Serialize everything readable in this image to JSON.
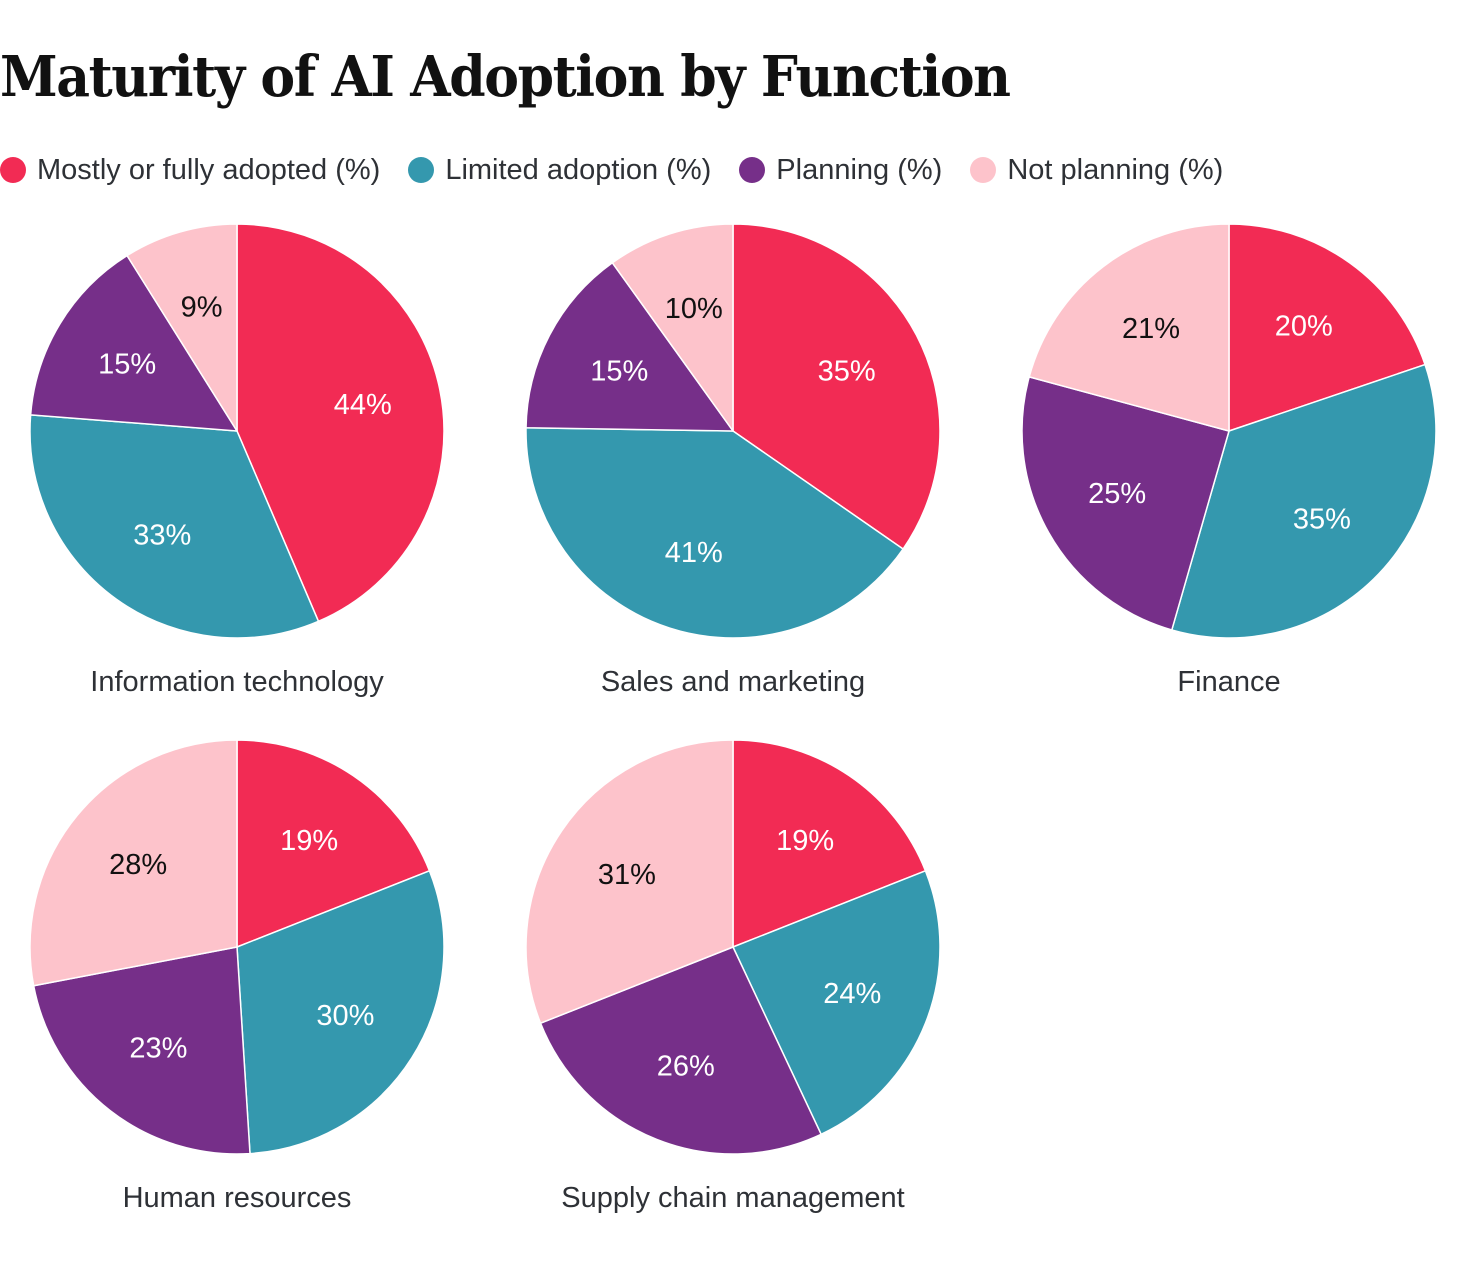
{
  "title": "Maturity of AI Adoption by Function",
  "legend": [
    {
      "label": "Mostly or fully adopted (%)",
      "color": "#f22b54"
    },
    {
      "label": "Limited adoption (%)",
      "color": "#3498ae"
    },
    {
      "label": "Planning (%)",
      "color": "#762f89"
    },
    {
      "label": "Not planning (%)",
      "color": "#fdc3cb"
    }
  ],
  "chart_data": {
    "type": "pie",
    "title": "Maturity of AI Adoption by Function",
    "legend_position": "top-left",
    "series_names": [
      "Mostly or fully adopted (%)",
      "Limited adoption (%)",
      "Planning (%)",
      "Not planning (%)"
    ],
    "colors": [
      "#f22b54",
      "#3498ae",
      "#762f89",
      "#fdc3cb"
    ],
    "label_colors": [
      "#ffffff",
      "#ffffff",
      "#ffffff",
      "#111111"
    ],
    "pies": [
      {
        "name": "Information technology",
        "values": [
          44,
          33,
          15,
          9
        ],
        "labels": [
          "44%",
          "33%",
          "15%",
          "9%"
        ]
      },
      {
        "name": "Sales and marketing",
        "values": [
          35,
          41,
          15,
          10
        ],
        "labels": [
          "35%",
          "41%",
          "15%",
          "10%"
        ]
      },
      {
        "name": "Finance",
        "values": [
          20,
          35,
          25,
          21
        ],
        "labels": [
          "20%",
          "35%",
          "25%",
          "21%"
        ]
      },
      {
        "name": "Human resources",
        "values": [
          19,
          30,
          23,
          28
        ],
        "labels": [
          "19%",
          "30%",
          "23%",
          "28%"
        ]
      },
      {
        "name": "Supply chain management",
        "values": [
          19,
          24,
          26,
          31
        ],
        "labels": [
          "19%",
          "24%",
          "26%",
          "31%"
        ]
      }
    ]
  }
}
